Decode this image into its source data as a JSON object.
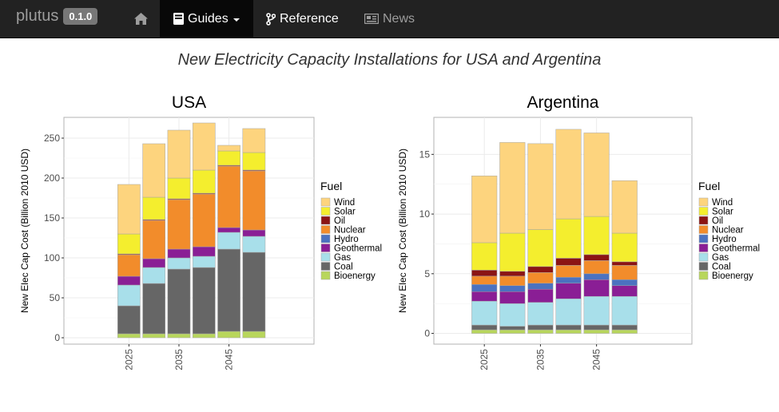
{
  "navbar": {
    "brand": "plutus",
    "version": "0.1.0",
    "items": [
      {
        "label": "",
        "icon": "home-icon"
      },
      {
        "label": "Guides",
        "icon": "book-icon",
        "active": true
      },
      {
        "label": "Reference",
        "icon": "branch-icon"
      },
      {
        "label": "News",
        "icon": "newspaper-icon",
        "muted": true
      }
    ]
  },
  "page": {
    "title": "New Electricity Capacity Installations for USA and Argentina"
  },
  "legend": {
    "title": "Fuel",
    "entries": [
      "Wind",
      "Solar",
      "Oil",
      "Nuclear",
      "Hydro",
      "Geothermal",
      "Gas",
      "Coal",
      "Bioenergy"
    ]
  },
  "colors": {
    "Wind": "#fdd47e",
    "Solar": "#f4ee2e",
    "Oil": "#8b1414",
    "Nuclear": "#f28c2b",
    "Hydro": "#4b72c0",
    "Geothermal": "#8a1e95",
    "Gas": "#a8dfea",
    "Coal": "#666666",
    "Bioenergy": "#b8d65c"
  },
  "chart_data": [
    {
      "type": "bar",
      "stacked": true,
      "title": "USA",
      "xlabel": "",
      "ylabel": "New Elec Cap Cost (Billion 2010 USD)",
      "ylim": [
        -8,
        276
      ],
      "yticks": [
        0,
        50,
        100,
        150,
        200,
        250
      ],
      "x": [
        2025,
        2030,
        2035,
        2040,
        2045,
        2050
      ],
      "xticks": [
        2025,
        2035,
        2045
      ],
      "xlim": [
        2012,
        2062
      ],
      "series": [
        {
          "name": "Bioenergy",
          "values": [
            5,
            5,
            5,
            5,
            8,
            8
          ]
        },
        {
          "name": "Coal",
          "values": [
            35,
            63,
            81,
            83,
            103,
            99
          ]
        },
        {
          "name": "Gas",
          "values": [
            26,
            20,
            14,
            14,
            21,
            20
          ]
        },
        {
          "name": "Geothermal",
          "values": [
            11,
            11,
            11,
            12,
            6,
            8
          ]
        },
        {
          "name": "Hydro",
          "values": [
            0,
            0,
            0,
            0,
            0,
            0
          ]
        },
        {
          "name": "Nuclear",
          "values": [
            27,
            48,
            62,
            66,
            77,
            74
          ]
        },
        {
          "name": "Oil",
          "values": [
            1,
            1,
            1,
            1,
            1,
            1
          ]
        },
        {
          "name": "Solar",
          "values": [
            25,
            28,
            26,
            29,
            18,
            22
          ]
        },
        {
          "name": "Wind",
          "values": [
            62,
            67,
            60,
            59,
            7,
            30
          ]
        }
      ]
    },
    {
      "type": "bar",
      "stacked": true,
      "title": "Argentina",
      "xlabel": "",
      "ylabel": "New Elec Cap Cost (Billion 2010 USD)",
      "ylim": [
        -0.9,
        18.1
      ],
      "yticks": [
        0,
        5,
        10,
        15
      ],
      "x": [
        2025,
        2030,
        2035,
        2040,
        2045,
        2050
      ],
      "xticks": [
        2025,
        2035,
        2045
      ],
      "xlim": [
        2016,
        2062
      ],
      "series": [
        {
          "name": "Bioenergy",
          "values": [
            0.3,
            0.3,
            0.3,
            0.3,
            0.3,
            0.3
          ]
        },
        {
          "name": "Coal",
          "values": [
            0.4,
            0.3,
            0.4,
            0.4,
            0.4,
            0.4
          ]
        },
        {
          "name": "Gas",
          "values": [
            2.0,
            1.9,
            1.9,
            2.2,
            2.4,
            2.4
          ]
        },
        {
          "name": "Geothermal",
          "values": [
            0.8,
            1.0,
            1.1,
            1.3,
            1.4,
            0.9
          ]
        },
        {
          "name": "Hydro",
          "values": [
            0.6,
            0.5,
            0.5,
            0.5,
            0.5,
            0.5
          ]
        },
        {
          "name": "Nuclear",
          "values": [
            0.7,
            0.8,
            0.9,
            1.0,
            1.1,
            1.2
          ]
        },
        {
          "name": "Oil",
          "values": [
            0.5,
            0.4,
            0.5,
            0.6,
            0.5,
            0.3
          ]
        },
        {
          "name": "Solar",
          "values": [
            2.3,
            3.2,
            3.1,
            3.3,
            3.2,
            2.4
          ]
        },
        {
          "name": "Wind",
          "values": [
            5.6,
            7.6,
            7.2,
            7.5,
            7.0,
            4.4
          ]
        }
      ]
    }
  ]
}
